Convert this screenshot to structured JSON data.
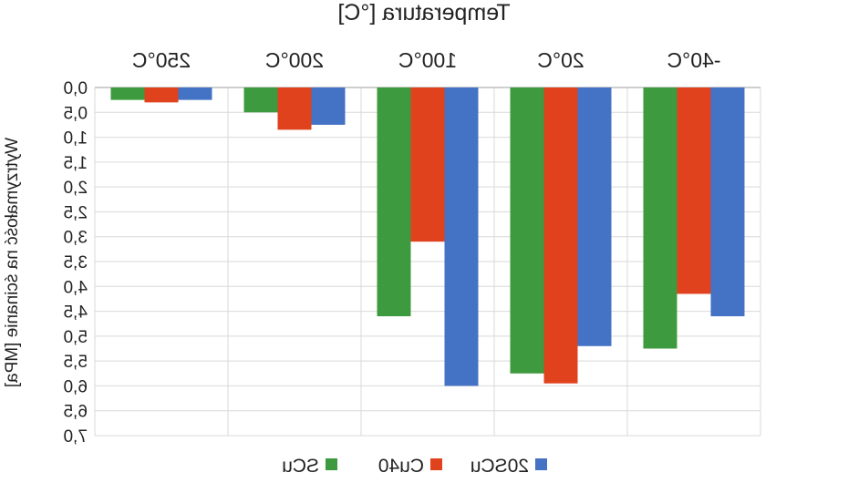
{
  "chart_data": {
    "type": "bar",
    "title": "Temperatura [°C]",
    "ylabel": "Wytrzymałość na ścinanie [MPa]",
    "xlabel": "",
    "categories": [
      "-40°C",
      "20°C",
      "100°C",
      "200°C",
      "250°C"
    ],
    "series": [
      {
        "name": "20SCu",
        "color": "#4472C4",
        "values": [
          4.6,
          5.2,
          6.0,
          0.75,
          0.25
        ]
      },
      {
        "name": "Cu40",
        "color": "#E0421E",
        "values": [
          4.15,
          5.95,
          3.1,
          0.85,
          0.3
        ]
      },
      {
        "name": "SCu",
        "color": "#3E9A3E",
        "values": [
          5.25,
          5.75,
          4.6,
          0.5,
          0.25
        ]
      }
    ],
    "ylim": [
      0,
      7.0
    ],
    "ytick_labels": [
      "0,0",
      "0,5",
      "1,0",
      "1,5",
      "2,0",
      "2,5",
      "3,0",
      "3,5",
      "4,0",
      "4,5",
      "5,0",
      "5,5",
      "6,0",
      "6,5",
      "7,0"
    ],
    "y_inverted": true,
    "x_axis_position": "top",
    "image_mirrored_horizontally": true,
    "grid": true,
    "legend_position": "bottom"
  }
}
